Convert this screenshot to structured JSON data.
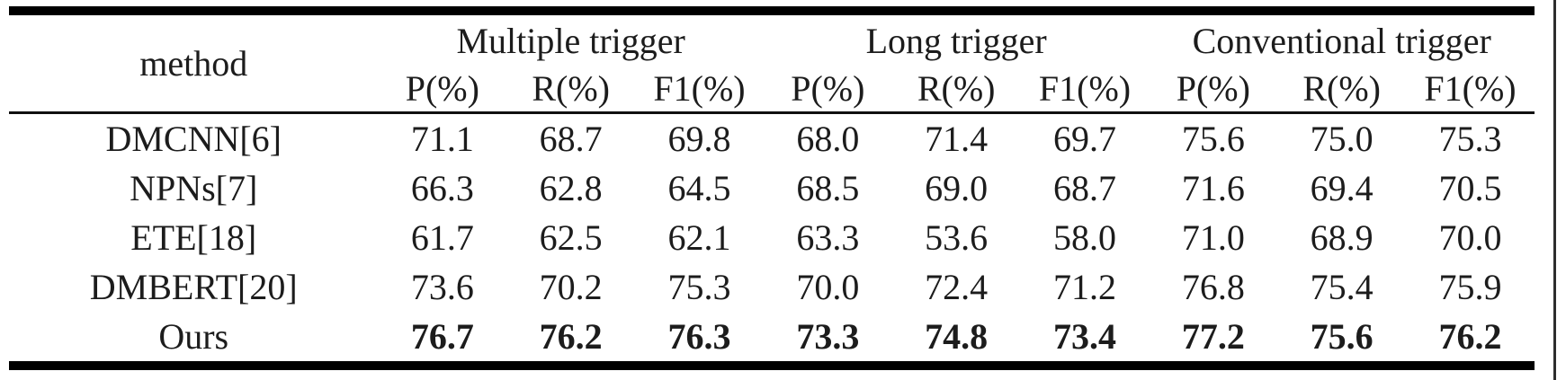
{
  "page": {
    "background": "#ffffff",
    "rule_color": "#000000",
    "text_color": "#1c1c1c"
  },
  "table": {
    "method_header": "method",
    "group_headers": [
      "Multiple trigger",
      "Long trigger",
      "Conventional trigger"
    ],
    "metric_headers": [
      "P(%)",
      "R(%)",
      "F1(%)",
      "P(%)",
      "R(%)",
      "F1(%)",
      "P(%)",
      "R(%)",
      "F1(%)"
    ],
    "rows": [
      {
        "method": "DMCNN[6]",
        "bold": false,
        "values": [
          "71.1",
          "68.7",
          "69.8",
          "68.0",
          "71.4",
          "69.7",
          "75.6",
          "75.0",
          "75.3"
        ]
      },
      {
        "method": "NPNs[7]",
        "bold": false,
        "values": [
          "66.3",
          "62.8",
          "64.5",
          "68.5",
          "69.0",
          "68.7",
          "71.6",
          "69.4",
          "70.5"
        ]
      },
      {
        "method": "ETE[18]",
        "bold": false,
        "values": [
          "61.7",
          "62.5",
          "62.1",
          "63.3",
          "53.6",
          "58.0",
          "71.0",
          "68.9",
          "70.0"
        ]
      },
      {
        "method": "DMBERT[20]",
        "bold": false,
        "values": [
          "73.6",
          "70.2",
          "75.3",
          "70.0",
          "72.4",
          "71.2",
          "76.8",
          "75.4",
          "75.9"
        ]
      },
      {
        "method": "Ours",
        "bold": true,
        "values": [
          "76.7",
          "76.2",
          "76.3",
          "73.3",
          "74.8",
          "73.4",
          "77.2",
          "75.6",
          "76.2"
        ]
      }
    ]
  },
  "chart_data": {
    "type": "table",
    "columns": [
      "method",
      "Multiple trigger P(%)",
      "Multiple trigger R(%)",
      "Multiple trigger F1(%)",
      "Long trigger P(%)",
      "Long trigger R(%)",
      "Long trigger F1(%)",
      "Conventional trigger P(%)",
      "Conventional trigger R(%)",
      "Conventional trigger F1(%)"
    ],
    "rows": [
      [
        "DMCNN[6]",
        71.1,
        68.7,
        69.8,
        68.0,
        71.4,
        69.7,
        75.6,
        75.0,
        75.3
      ],
      [
        "NPNs[7]",
        66.3,
        62.8,
        64.5,
        68.5,
        69.0,
        68.7,
        71.6,
        69.4,
        70.5
      ],
      [
        "ETE[18]",
        61.7,
        62.5,
        62.1,
        63.3,
        53.6,
        58.0,
        71.0,
        68.9,
        70.0
      ],
      [
        "DMBERT[20]",
        73.6,
        70.2,
        75.3,
        70.0,
        72.4,
        71.2,
        76.8,
        75.4,
        75.9
      ],
      [
        "Ours",
        76.7,
        76.2,
        76.3,
        73.3,
        74.8,
        73.4,
        77.2,
        75.6,
        76.2
      ]
    ]
  }
}
